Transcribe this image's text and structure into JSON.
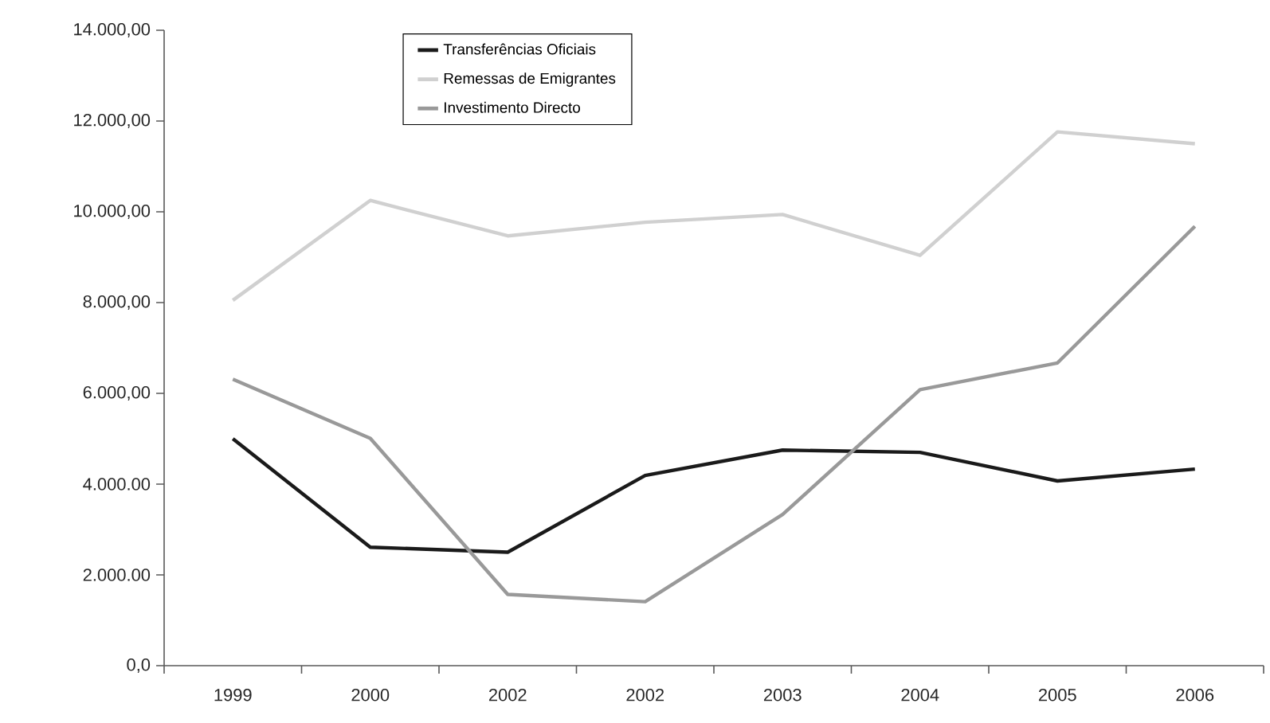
{
  "chart_data": {
    "type": "line",
    "categories": [
      "1999",
      "2000",
      "2002",
      "2002",
      "2003",
      "2004",
      "2005",
      "2006"
    ],
    "series": [
      {
        "name": "Transferências Oficiais",
        "color": "#1a1a1a",
        "values": [
          5000,
          2610,
          2500,
          4190,
          4750,
          4700,
          4070,
          4330
        ]
      },
      {
        "name": "Remessas de Emigrantes",
        "color": "#d0d0d0",
        "values": [
          8050,
          10250,
          9470,
          9770,
          9940,
          9040,
          11760,
          11500
        ]
      },
      {
        "name": "Investimento Directo",
        "color": "#999999",
        "values": [
          6310,
          5010,
          1570,
          1410,
          3330,
          6080,
          6670,
          9680
        ]
      }
    ],
    "ylim": [
      0,
      14000
    ],
    "yticks": [
      {
        "value": 0,
        "label": "0,0"
      },
      {
        "value": 2000,
        "label": "2.000.00"
      },
      {
        "value": 4000,
        "label": "4.000.00"
      },
      {
        "value": 6000,
        "label": "6.000,00"
      },
      {
        "value": 8000,
        "label": "8.000,00"
      },
      {
        "value": 10000,
        "label": "10.000,00"
      },
      {
        "value": 12000,
        "label": "12.000,00"
      },
      {
        "value": 14000,
        "label": "14.000,00"
      }
    ],
    "grid": false,
    "legend": "top",
    "marker": "none",
    "line_style": "solid"
  }
}
